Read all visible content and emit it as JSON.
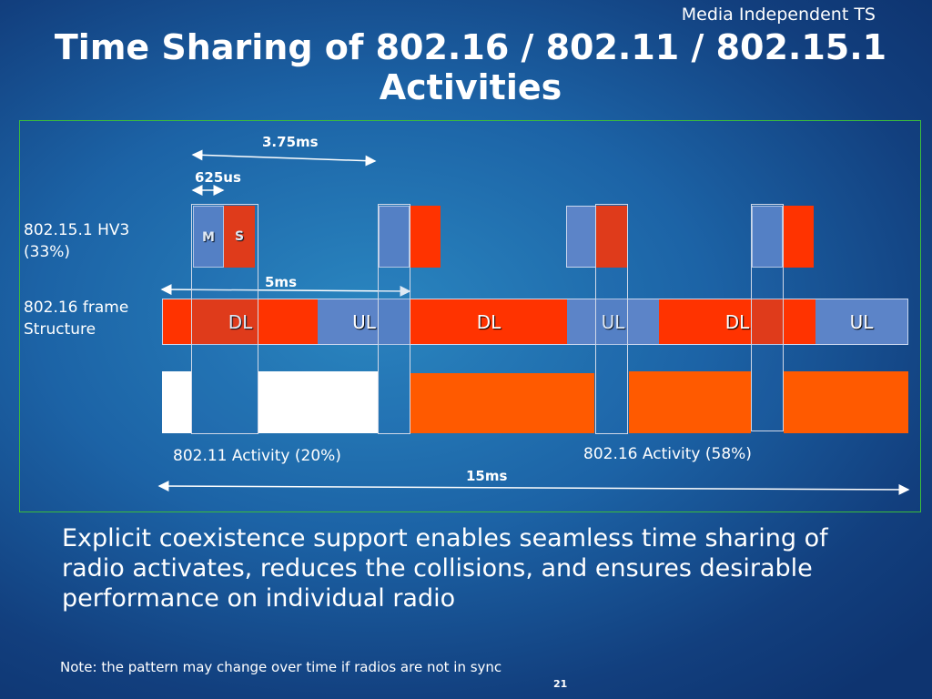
{
  "header": "Media Independent TS",
  "title_line1": "Time Sharing of 802.16 / 802.11 / 802.15.1",
  "title_line2": "Activities",
  "diagram": {
    "measure_375": "3.75ms",
    "measure_625": "625us",
    "measure_5ms": "5ms",
    "measure_15ms": "15ms",
    "hv3_label_line1": "802.15.1 HV3",
    "hv3_label_line2": "(33%)",
    "frame_label_line1": "802.16 frame",
    "frame_label_line2": "Structure",
    "m_label": "M",
    "s_label": "S",
    "frame_segments": [
      "DL",
      "UL",
      "DL",
      "UL",
      "DL",
      "UL"
    ],
    "wifi_label": "802.11 Activity (20%)",
    "wimax_label": "802.16 Activity (58%)",
    "colors": {
      "dl": "#ff3300",
      "ul": "#5c84c8",
      "wimax_activity": "#ff5a00",
      "wifi_activity": "#ffffff"
    }
  },
  "body_text": "Explicit coexistence support enables seamless time sharing of radio activates, reduces the collisions, and ensures desirable performance on individual radio",
  "note": "Note: the pattern may change over time if radios are not in sync",
  "page_number": "21"
}
